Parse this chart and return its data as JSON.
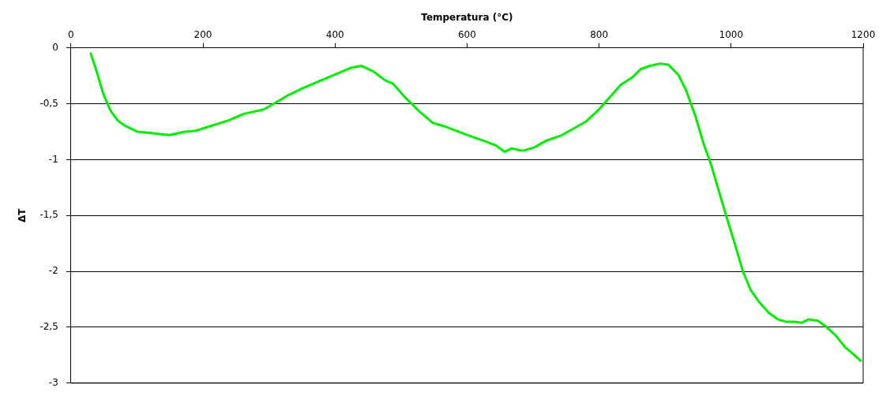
{
  "chart_data": {
    "type": "line",
    "xlabel": "Temperatura (°C)",
    "ylabel": "ΔT",
    "x": [
      30,
      39,
      49,
      60,
      71,
      83,
      101,
      119,
      149,
      173,
      190,
      211,
      238,
      262,
      292,
      310,
      327,
      351,
      375,
      399,
      423,
      440,
      458,
      476,
      488,
      506,
      530,
      548,
      565,
      583,
      601,
      625,
      643,
      657,
      667,
      685,
      702,
      720,
      744,
      762,
      780,
      800,
      815,
      833,
      851,
      863,
      877,
      893,
      905,
      920,
      932,
      946,
      958,
      970,
      982,
      994,
      1006,
      1018,
      1030,
      1042,
      1057,
      1071,
      1083,
      1095,
      1107,
      1117,
      1131,
      1143,
      1158,
      1173,
      1187,
      1196
    ],
    "series": [
      {
        "color": "#00ee00",
        "values": [
          -0.05,
          -0.21,
          -0.41,
          -0.56,
          -0.65,
          -0.7,
          -0.75,
          -0.76,
          -0.78,
          -0.75,
          -0.74,
          -0.7,
          -0.65,
          -0.59,
          -0.55,
          -0.49,
          -0.43,
          -0.36,
          -0.3,
          -0.24,
          -0.18,
          -0.16,
          -0.21,
          -0.29,
          -0.32,
          -0.44,
          -0.58,
          -0.67,
          -0.7,
          -0.74,
          -0.78,
          -0.83,
          -0.87,
          -0.93,
          -0.9,
          -0.92,
          -0.89,
          -0.83,
          -0.78,
          -0.72,
          -0.66,
          -0.55,
          -0.45,
          -0.33,
          -0.26,
          -0.19,
          -0.16,
          -0.14,
          -0.15,
          -0.24,
          -0.38,
          -0.61,
          -0.85,
          -1.05,
          -1.29,
          -1.53,
          -1.76,
          -2.0,
          -2.17,
          -2.27,
          -2.37,
          -2.43,
          -2.45,
          -2.45,
          -2.46,
          -2.43,
          -2.44,
          -2.49,
          -2.57,
          -2.68,
          -2.75,
          -2.8
        ]
      }
    ],
    "xlim": [
      0,
      1200
    ],
    "xticks": [
      0,
      200,
      400,
      600,
      800,
      1000,
      1200
    ],
    "ylim": [
      -3,
      0
    ],
    "yticks": [
      {
        "value": 0,
        "label": "0"
      },
      {
        "value": -0.5,
        "label": "-0,5"
      },
      {
        "value": -1,
        "label": "-1"
      },
      {
        "value": -1.5,
        "label": "-1,5"
      },
      {
        "value": -2,
        "label": "-2"
      },
      {
        "value": -2.5,
        "label": "-2,5"
      },
      {
        "value": -3,
        "label": "-3"
      }
    ],
    "grid": "y",
    "legend": false,
    "marker": "none",
    "line_style": "solid"
  }
}
